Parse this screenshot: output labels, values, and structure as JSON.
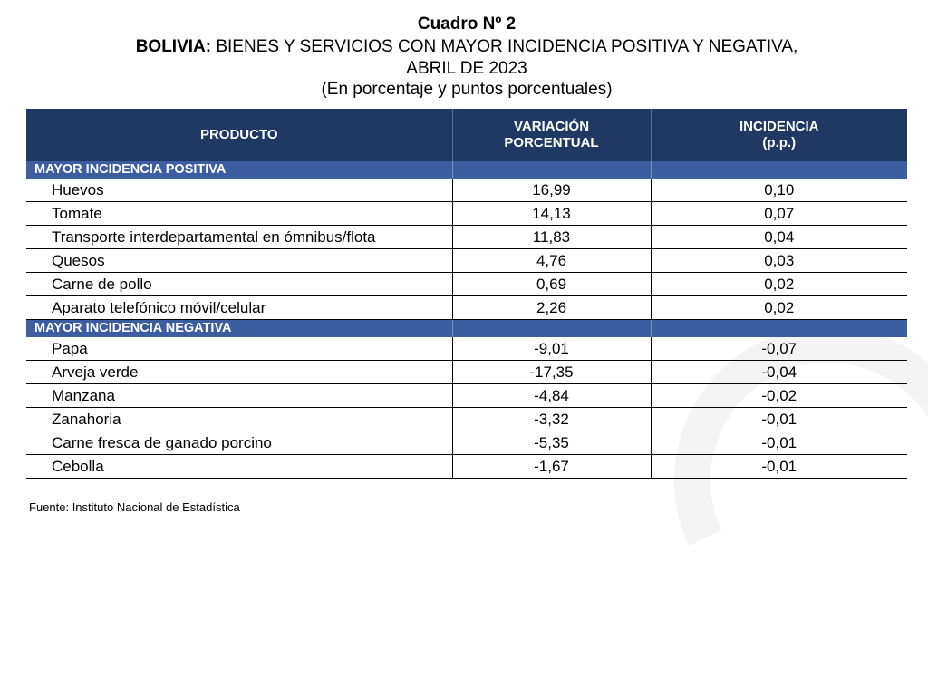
{
  "title": {
    "line1": "Cuadro Nº 2",
    "line2_bold": "BOLIVIA:",
    "line2_rest": " BIENES Y SERVICIOS CON MAYOR INCIDENCIA POSITIVA Y NEGATIVA,",
    "line3": "ABRIL DE 2023",
    "line4": "(En porcentaje y puntos porcentuales)"
  },
  "table": {
    "headers": {
      "producto": "PRODUCTO",
      "variacion_1": "VARIACIÓN",
      "variacion_2": "PORCENTUAL",
      "incidencia_1": "INCIDENCIA",
      "incidencia_2": "(p.p.)"
    },
    "positive_section": "MAYOR INCIDENCIA POSITIVA",
    "positive_rows": [
      {
        "producto": "Huevos",
        "variacion": "16,99",
        "incidencia": "0,10"
      },
      {
        "producto": "Tomate",
        "variacion": "14,13",
        "incidencia": "0,07"
      },
      {
        "producto": "Transporte interdepartamental en ómnibus/flota",
        "variacion": "11,83",
        "incidencia": "0,04"
      },
      {
        "producto": "Quesos",
        "variacion": "4,76",
        "incidencia": "0,03"
      },
      {
        "producto": "Carne de pollo",
        "variacion": "0,69",
        "incidencia": "0,02"
      },
      {
        "producto": "Aparato telefónico móvil/celular",
        "variacion": "2,26",
        "incidencia": "0,02"
      }
    ],
    "negative_section": "MAYOR INCIDENCIA NEGATIVA",
    "negative_rows": [
      {
        "producto": "Papa",
        "variacion": "-9,01",
        "incidencia": "-0,07"
      },
      {
        "producto": "Arveja verde",
        "variacion": "-17,35",
        "incidencia": "-0,04"
      },
      {
        "producto": "Manzana",
        "variacion": "-4,84",
        "incidencia": "-0,02"
      },
      {
        "producto": "Zanahoria",
        "variacion": "-3,32",
        "incidencia": "-0,01"
      },
      {
        "producto": "Carne fresca de ganado porcino",
        "variacion": "-5,35",
        "incidencia": "-0,01"
      },
      {
        "producto": "Cebolla",
        "variacion": "-1,67",
        "incidencia": "-0,01"
      }
    ]
  },
  "source": "Fuente: Instituto Nacional de Estadística",
  "colors": {
    "header_bg": "#1f3864",
    "section_bg": "#3a5ea0"
  }
}
